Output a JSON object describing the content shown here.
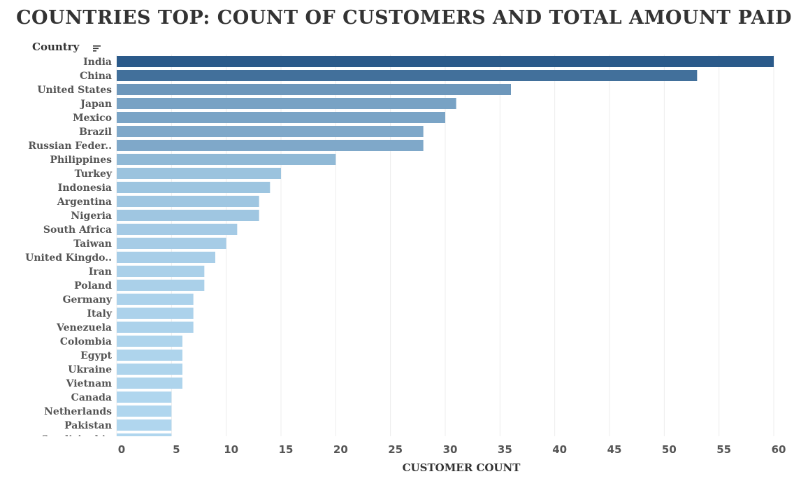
{
  "chart_data": {
    "type": "bar",
    "orientation": "horizontal",
    "title": "COUNTRIES TOP: COUNT OF CUSTOMERS AND TOTAL AMOUNT PAID",
    "row_header": "Country",
    "xlabel": "CUSTOMER COUNT",
    "xlim": [
      0,
      63
    ],
    "xticks": [
      "0",
      "5",
      "10",
      "15",
      "20",
      "25",
      "30",
      "35",
      "40",
      "45",
      "50",
      "55",
      "60"
    ],
    "grid": true,
    "categories": [
      "India",
      "China",
      "United States",
      "Japan",
      "Mexico",
      "Brazil",
      "Russian Feder..",
      "Philippines",
      "Turkey",
      "Indonesia",
      "Argentina",
      "Nigeria",
      "South Africa",
      "Taiwan",
      "United Kingdo..",
      "Iran",
      "Poland",
      "Germany",
      "Italy",
      "Venezuela",
      "Colombia",
      "Egypt",
      "Ukraine",
      "Vietnam",
      "Canada",
      "Netherlands",
      "Pakistan",
      "Saudi Arabia"
    ],
    "values": [
      60,
      53,
      36,
      31,
      30,
      28,
      28,
      20,
      15,
      14,
      13,
      13,
      11,
      10,
      9,
      8,
      8,
      7,
      7,
      7,
      6,
      6,
      6,
      6,
      5,
      5,
      5,
      5
    ],
    "colors": {
      "high": "#2b5a8a",
      "low": "#b0d6ee",
      "grid": "#ececec",
      "axis_text": "#555555"
    }
  },
  "icons": {
    "sort": "sort-descending-icon"
  }
}
